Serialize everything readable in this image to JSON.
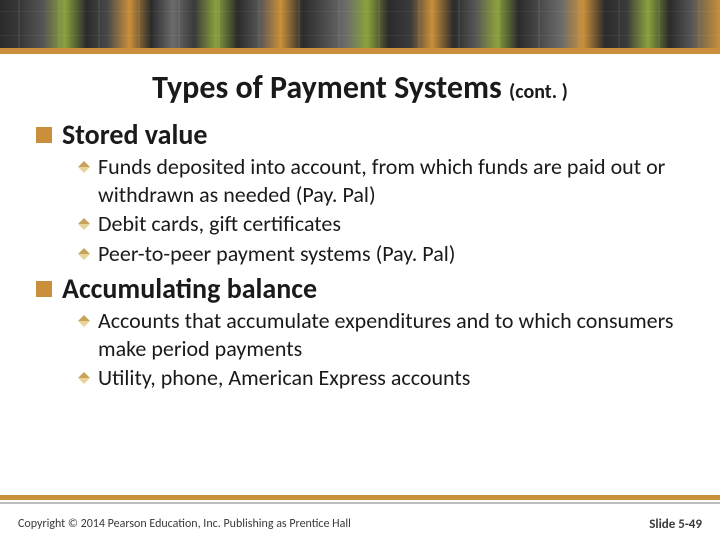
{
  "colors": {
    "accent": "#c98f3a",
    "titleText": "#1a1a1a",
    "bodyText": "#1a1a1a",
    "l1Bullet": "#c98f3a",
    "l2DiamondTop": "#c7a25b",
    "l2DiamondBottom": "#e8d39a",
    "footerRule": "#c98f3a",
    "footerRuleShadow": "#bdbdbd",
    "background": "#ffffff"
  },
  "typography": {
    "titleSizePx": 32,
    "titleContSizePx": 20,
    "l1SizePx": 28,
    "l2SizePx": 22,
    "footerSizePx": 12,
    "pageNumSizePx": 13,
    "fontFamily": "Calibri"
  },
  "layout": {
    "widthPx": 720,
    "heightPx": 540,
    "headerBandHeightPx": 48,
    "accentRuleHeightPx": 6,
    "contentPaddingLeftPx": 36,
    "contentPaddingRightPx": 36,
    "l2IndentPx": 42,
    "footerRuleBottomPx": 36
  },
  "title": {
    "main": "Types of Payment Systems ",
    "cont": "(cont. )"
  },
  "sections": [
    {
      "heading": "Stored value",
      "items": [
        "Funds deposited into account, from which funds are paid out or withdrawn as needed (Pay. Pal)",
        "Debit cards, gift certificates",
        "Peer-to-peer payment systems (Pay. Pal)"
      ]
    },
    {
      "heading": "Accumulating balance",
      "items": [
        "Accounts that accumulate expenditures and to which consumers make period payments",
        "Utility, phone, American Express accounts"
      ]
    }
  ],
  "footer": {
    "copyright": "Copyright © 2014 Pearson Education, Inc. Publishing as Prentice Hall",
    "pageLabel": "Slide 5-49"
  }
}
